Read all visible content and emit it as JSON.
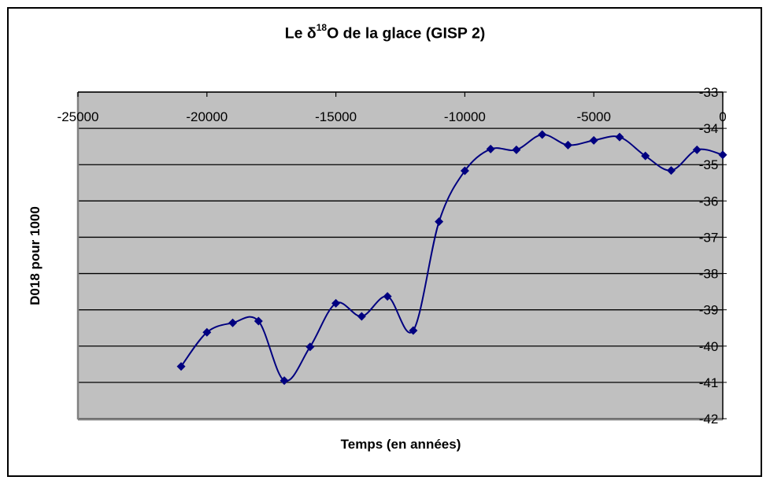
{
  "chart_data": {
    "type": "line",
    "title": "Le δ18O de la glace (GISP 2)",
    "title_parts": {
      "prefix": "Le δ",
      "superscript": "18",
      "suffix": "O de la glace (GISP 2)"
    },
    "xlabel": "Temps (en années)",
    "ylabel": "D018 pour 1000",
    "xlim": [
      -25000,
      0
    ],
    "ylim": [
      -42,
      -33
    ],
    "x_ticks": [
      -25000,
      -20000,
      -15000,
      -10000,
      -5000,
      0
    ],
    "x_tick_labels": [
      "-25000",
      "-20000",
      "-15000",
      "-10000",
      "-5000",
      "0"
    ],
    "y_ticks": [
      -33,
      -34,
      -35,
      -36,
      -37,
      -38,
      -39,
      -40,
      -41,
      -42
    ],
    "y_tick_labels": [
      "-33",
      "-34",
      "-35",
      "-36",
      "-37",
      "-38",
      "-39",
      "-40",
      "-41",
      "-42"
    ],
    "x_axis_position": "top (crosses at y = -33)",
    "y_axis_position": "right (crosses at x = 0)",
    "grid": {
      "horizontal": true,
      "vertical": false
    },
    "legend": null,
    "smoothed": true,
    "series": [
      {
        "name": "δ18O",
        "color": "#000080",
        "marker": "diamond",
        "x": [
          -21000,
          -20000,
          -19000,
          -18000,
          -17000,
          -16000,
          -15000,
          -14000,
          -13000,
          -12000,
          -11000,
          -10000,
          -9000,
          -8000,
          -7000,
          -6000,
          -5000,
          -4000,
          -3000,
          -2000,
          -1000,
          0
        ],
        "values": [
          -40.56,
          -39.62,
          -39.36,
          -39.31,
          -40.95,
          -40.02,
          -38.82,
          -39.18,
          -38.63,
          -39.57,
          -36.57,
          -35.17,
          -34.57,
          -34.59,
          -34.17,
          -34.46,
          -34.33,
          -34.24,
          -34.76,
          -35.16,
          -34.59,
          -34.73
        ]
      }
    ]
  },
  "colors": {
    "plot_background": "#C0C0C0",
    "plot_border": "#808080",
    "gridline": "#000000",
    "series": "#000080"
  }
}
